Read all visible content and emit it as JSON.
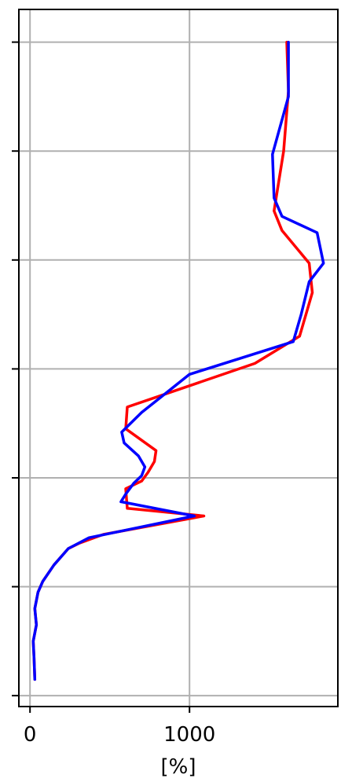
{
  "chart_data": {
    "type": "line",
    "xlabel": "[%]",
    "x_ticks": [
      0,
      1000
    ],
    "xlim": [
      -70,
      1930
    ],
    "ylim": [
      -0.1,
      6.3
    ],
    "y_ticks": [
      0,
      1,
      2,
      3,
      4,
      5,
      6
    ],
    "grid": true,
    "series": [
      {
        "color": "#ff0000",
        "points": [
          [
            30,
            0.15
          ],
          [
            25,
            0.35
          ],
          [
            20,
            0.5
          ],
          [
            40,
            0.65
          ],
          [
            30,
            0.8
          ],
          [
            50,
            0.95
          ],
          [
            80,
            1.05
          ],
          [
            150,
            1.2
          ],
          [
            240,
            1.35
          ],
          [
            310,
            1.4
          ],
          [
            460,
            1.48
          ],
          [
            1090,
            1.65
          ],
          [
            610,
            1.72
          ],
          [
            600,
            1.9
          ],
          [
            700,
            1.97
          ],
          [
            740,
            2.05
          ],
          [
            780,
            2.15
          ],
          [
            790,
            2.25
          ],
          [
            600,
            2.45
          ],
          [
            610,
            2.65
          ],
          [
            1410,
            3.05
          ],
          [
            1690,
            3.3
          ],
          [
            1770,
            3.7
          ],
          [
            1750,
            3.97
          ],
          [
            1580,
            4.27
          ],
          [
            1530,
            4.45
          ],
          [
            1590,
            5.0
          ],
          [
            1620,
            5.55
          ],
          [
            1610,
            6.0
          ]
        ]
      },
      {
        "color": "#0000ff",
        "points": [
          [
            30,
            0.15
          ],
          [
            25,
            0.35
          ],
          [
            20,
            0.5
          ],
          [
            40,
            0.65
          ],
          [
            30,
            0.8
          ],
          [
            50,
            0.95
          ],
          [
            80,
            1.05
          ],
          [
            150,
            1.2
          ],
          [
            240,
            1.35
          ],
          [
            370,
            1.45
          ],
          [
            1030,
            1.65
          ],
          [
            570,
            1.78
          ],
          [
            600,
            1.85
          ],
          [
            650,
            1.95
          ],
          [
            700,
            2.02
          ],
          [
            720,
            2.1
          ],
          [
            680,
            2.2
          ],
          [
            590,
            2.32
          ],
          [
            575,
            2.42
          ],
          [
            700,
            2.6
          ],
          [
            1000,
            2.95
          ],
          [
            1650,
            3.25
          ],
          [
            1700,
            3.5
          ],
          [
            1750,
            3.8
          ],
          [
            1840,
            3.97
          ],
          [
            1800,
            4.25
          ],
          [
            1580,
            4.4
          ],
          [
            1530,
            4.57
          ],
          [
            1520,
            4.97
          ],
          [
            1620,
            5.5
          ],
          [
            1620,
            6.0
          ]
        ]
      }
    ]
  }
}
